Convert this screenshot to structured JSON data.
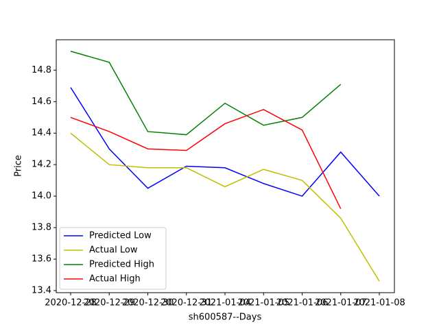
{
  "chart_data": {
    "type": "line",
    "xlabel": "sh600587--Days",
    "ylabel": "Price",
    "categories": [
      "2020-12-28",
      "2020-12-29",
      "2020-12-30",
      "2020-12-31",
      "2021-01-04",
      "2021-01-05",
      "2021-01-06",
      "2021-01-07",
      "2021-01-08"
    ],
    "series": [
      {
        "name": "Predicted Low",
        "color": "#0000ff",
        "values": [
          14.69,
          14.3,
          14.05,
          14.19,
          14.18,
          14.08,
          14.0,
          14.28,
          14.0
        ]
      },
      {
        "name": "Actual Low",
        "color": "#bfbf00",
        "values": [
          14.4,
          14.2,
          14.18,
          14.18,
          14.06,
          14.17,
          14.1,
          13.86,
          13.46
        ]
      },
      {
        "name": "Predicted High",
        "color": "#008000",
        "values": [
          14.92,
          14.85,
          14.41,
          14.39,
          14.59,
          14.45,
          14.5,
          14.71,
          null
        ]
      },
      {
        "name": "Actual High",
        "color": "#ff0000",
        "values": [
          14.5,
          14.41,
          14.3,
          14.29,
          14.46,
          14.55,
          14.42,
          13.92,
          null
        ]
      }
    ],
    "ylim": [
      13.387,
      14.993
    ],
    "yticks": [
      {
        "value": 13.4,
        "label": "13.4"
      },
      {
        "value": 13.6,
        "label": "13.6"
      },
      {
        "value": 13.8,
        "label": "13.8"
      },
      {
        "value": 14.0,
        "label": "14.0"
      },
      {
        "value": 14.2,
        "label": "14.2"
      },
      {
        "value": 14.4,
        "label": "14.4"
      },
      {
        "value": 14.6,
        "label": "14.6"
      },
      {
        "value": 14.8,
        "label": "14.8"
      }
    ],
    "legend": "lower left"
  }
}
